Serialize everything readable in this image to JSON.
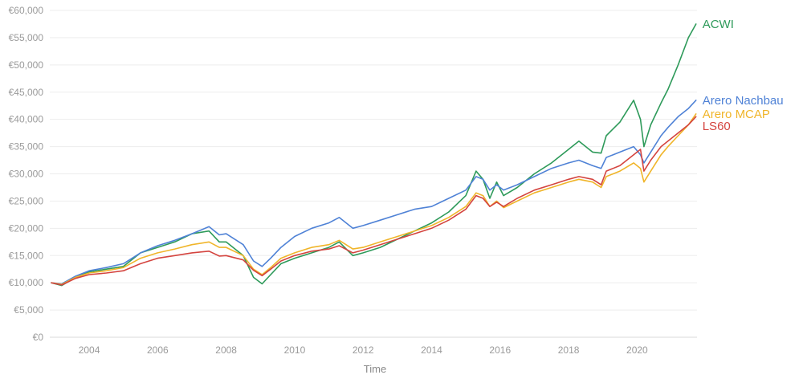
{
  "chart_data": {
    "type": "line",
    "xlabel": "Time",
    "ylabel": "",
    "xlim": [
      2002.85,
      2021.75
    ],
    "ylim": [
      0,
      60000
    ],
    "x_ticks": [
      2004,
      2006,
      2008,
      2010,
      2012,
      2014,
      2016,
      2018,
      2020
    ],
    "x_tick_labels": [
      "2004",
      "2006",
      "2008",
      "2010",
      "2012",
      "2014",
      "2016",
      "2018",
      "2020"
    ],
    "y_ticks": [
      0,
      5000,
      10000,
      15000,
      20000,
      25000,
      30000,
      35000,
      40000,
      45000,
      50000,
      55000,
      60000
    ],
    "y_tick_labels": [
      "€0",
      "€5,000",
      "€10,000",
      "€15,000",
      "€20,000",
      "€25,000",
      "€30,000",
      "€35,000",
      "€40,000",
      "€45,000",
      "€50,000",
      "€55,000",
      "€60,000"
    ],
    "grid": "horizontal",
    "legend": "labels at line ends",
    "series": [
      {
        "name": "ACWI",
        "color": "#2e9a5a",
        "points": [
          [
            2002.9,
            10000
          ],
          [
            2003.2,
            9500
          ],
          [
            2003.6,
            11000
          ],
          [
            2004.0,
            12000
          ],
          [
            2004.5,
            12500
          ],
          [
            2005.0,
            13000
          ],
          [
            2005.5,
            15500
          ],
          [
            2006.0,
            16500
          ],
          [
            2006.5,
            17500
          ],
          [
            2007.0,
            19000
          ],
          [
            2007.5,
            19500
          ],
          [
            2007.8,
            17500
          ],
          [
            2008.0,
            17500
          ],
          [
            2008.5,
            15000
          ],
          [
            2008.8,
            11000
          ],
          [
            2009.05,
            9800
          ],
          [
            2009.3,
            11500
          ],
          [
            2009.6,
            13500
          ],
          [
            2010.0,
            14500
          ],
          [
            2010.5,
            15500
          ],
          [
            2011.0,
            16500
          ],
          [
            2011.3,
            17500
          ],
          [
            2011.7,
            15000
          ],
          [
            2012.0,
            15500
          ],
          [
            2012.5,
            16500
          ],
          [
            2013.0,
            18000
          ],
          [
            2013.5,
            19500
          ],
          [
            2014.0,
            21000
          ],
          [
            2014.5,
            23000
          ],
          [
            2015.0,
            26000
          ],
          [
            2015.3,
            30500
          ],
          [
            2015.5,
            29000
          ],
          [
            2015.7,
            25500
          ],
          [
            2015.9,
            28500
          ],
          [
            2016.1,
            26000
          ],
          [
            2016.5,
            27500
          ],
          [
            2017.0,
            30000
          ],
          [
            2017.5,
            32000
          ],
          [
            2018.0,
            34500
          ],
          [
            2018.3,
            36000
          ],
          [
            2018.7,
            34000
          ],
          [
            2018.95,
            33800
          ],
          [
            2019.1,
            37000
          ],
          [
            2019.5,
            39500
          ],
          [
            2019.9,
            43500
          ],
          [
            2020.1,
            40000
          ],
          [
            2020.2,
            35000
          ],
          [
            2020.4,
            39000
          ],
          [
            2020.7,
            43000
          ],
          [
            2020.9,
            45500
          ],
          [
            2021.2,
            50000
          ],
          [
            2021.5,
            55000
          ],
          [
            2021.72,
            57500
          ]
        ]
      },
      {
        "name": "Arero Nachbau",
        "color": "#4f82d6",
        "points": [
          [
            2002.9,
            10000
          ],
          [
            2003.2,
            9800
          ],
          [
            2003.6,
            11200
          ],
          [
            2004.0,
            12200
          ],
          [
            2004.5,
            12800
          ],
          [
            2005.0,
            13500
          ],
          [
            2005.5,
            15500
          ],
          [
            2006.0,
            16800
          ],
          [
            2006.5,
            17800
          ],
          [
            2007.0,
            19000
          ],
          [
            2007.5,
            20300
          ],
          [
            2007.8,
            18800
          ],
          [
            2008.0,
            19000
          ],
          [
            2008.5,
            17000
          ],
          [
            2008.8,
            14000
          ],
          [
            2009.05,
            13000
          ],
          [
            2009.3,
            14500
          ],
          [
            2009.6,
            16500
          ],
          [
            2010.0,
            18500
          ],
          [
            2010.5,
            20000
          ],
          [
            2011.0,
            21000
          ],
          [
            2011.3,
            22000
          ],
          [
            2011.7,
            20000
          ],
          [
            2012.0,
            20500
          ],
          [
            2012.5,
            21500
          ],
          [
            2013.0,
            22500
          ],
          [
            2013.5,
            23500
          ],
          [
            2014.0,
            24000
          ],
          [
            2014.5,
            25500
          ],
          [
            2015.0,
            27000
          ],
          [
            2015.3,
            29500
          ],
          [
            2015.5,
            29000
          ],
          [
            2015.7,
            27000
          ],
          [
            2015.9,
            28000
          ],
          [
            2016.1,
            27000
          ],
          [
            2016.5,
            28000
          ],
          [
            2017.0,
            29500
          ],
          [
            2017.5,
            31000
          ],
          [
            2018.0,
            32000
          ],
          [
            2018.3,
            32500
          ],
          [
            2018.7,
            31500
          ],
          [
            2018.95,
            31000
          ],
          [
            2019.1,
            33000
          ],
          [
            2019.5,
            34000
          ],
          [
            2019.9,
            35000
          ],
          [
            2020.1,
            33500
          ],
          [
            2020.2,
            32000
          ],
          [
            2020.4,
            34000
          ],
          [
            2020.7,
            37000
          ],
          [
            2020.9,
            38500
          ],
          [
            2021.2,
            40500
          ],
          [
            2021.5,
            42000
          ],
          [
            2021.72,
            43500
          ]
        ]
      },
      {
        "name": "Arero MCAP",
        "color": "#f0b52a",
        "points": [
          [
            2002.9,
            10000
          ],
          [
            2003.2,
            9700
          ],
          [
            2003.6,
            11000
          ],
          [
            2004.0,
            11800
          ],
          [
            2004.5,
            12200
          ],
          [
            2005.0,
            12800
          ],
          [
            2005.5,
            14500
          ],
          [
            2006.0,
            15500
          ],
          [
            2006.5,
            16200
          ],
          [
            2007.0,
            17000
          ],
          [
            2007.5,
            17500
          ],
          [
            2007.8,
            16500
          ],
          [
            2008.0,
            16500
          ],
          [
            2008.5,
            15000
          ],
          [
            2008.8,
            12500
          ],
          [
            2009.05,
            11500
          ],
          [
            2009.3,
            12800
          ],
          [
            2009.6,
            14500
          ],
          [
            2010.0,
            15500
          ],
          [
            2010.5,
            16500
          ],
          [
            2011.0,
            17000
          ],
          [
            2011.3,
            17800
          ],
          [
            2011.7,
            16200
          ],
          [
            2012.0,
            16500
          ],
          [
            2012.5,
            17500
          ],
          [
            2013.0,
            18500
          ],
          [
            2013.5,
            19500
          ],
          [
            2014.0,
            20500
          ],
          [
            2014.5,
            22000
          ],
          [
            2015.0,
            24000
          ],
          [
            2015.3,
            26500
          ],
          [
            2015.5,
            26000
          ],
          [
            2015.7,
            24000
          ],
          [
            2015.9,
            25000
          ],
          [
            2016.1,
            23800
          ],
          [
            2016.5,
            25000
          ],
          [
            2017.0,
            26500
          ],
          [
            2017.5,
            27500
          ],
          [
            2018.0,
            28500
          ],
          [
            2018.3,
            29000
          ],
          [
            2018.7,
            28500
          ],
          [
            2018.95,
            27500
          ],
          [
            2019.1,
            29500
          ],
          [
            2019.5,
            30500
          ],
          [
            2019.9,
            32000
          ],
          [
            2020.1,
            31000
          ],
          [
            2020.2,
            28500
          ],
          [
            2020.4,
            30500
          ],
          [
            2020.7,
            33500
          ],
          [
            2020.9,
            35000
          ],
          [
            2021.2,
            37000
          ],
          [
            2021.5,
            39000
          ],
          [
            2021.72,
            41000
          ]
        ]
      },
      {
        "name": "LS60",
        "color": "#d4443f",
        "points": [
          [
            2002.9,
            10000
          ],
          [
            2003.2,
            9600
          ],
          [
            2003.6,
            10800
          ],
          [
            2004.0,
            11500
          ],
          [
            2004.5,
            11800
          ],
          [
            2005.0,
            12200
          ],
          [
            2005.5,
            13500
          ],
          [
            2006.0,
            14500
          ],
          [
            2006.5,
            15000
          ],
          [
            2007.0,
            15500
          ],
          [
            2007.5,
            15800
          ],
          [
            2007.8,
            14900
          ],
          [
            2008.0,
            15000
          ],
          [
            2008.5,
            14200
          ],
          [
            2008.8,
            12300
          ],
          [
            2009.05,
            11300
          ],
          [
            2009.3,
            12500
          ],
          [
            2009.6,
            14000
          ],
          [
            2010.0,
            15000
          ],
          [
            2010.5,
            15800
          ],
          [
            2011.0,
            16200
          ],
          [
            2011.3,
            16800
          ],
          [
            2011.7,
            15500
          ],
          [
            2012.0,
            16000
          ],
          [
            2012.5,
            17000
          ],
          [
            2013.0,
            18000
          ],
          [
            2013.5,
            19000
          ],
          [
            2014.0,
            20000
          ],
          [
            2014.5,
            21500
          ],
          [
            2015.0,
            23500
          ],
          [
            2015.3,
            26000
          ],
          [
            2015.5,
            25500
          ],
          [
            2015.7,
            24000
          ],
          [
            2015.9,
            24800
          ],
          [
            2016.1,
            24000
          ],
          [
            2016.5,
            25500
          ],
          [
            2017.0,
            27000
          ],
          [
            2017.5,
            28000
          ],
          [
            2018.0,
            29000
          ],
          [
            2018.3,
            29500
          ],
          [
            2018.7,
            29000
          ],
          [
            2018.95,
            28000
          ],
          [
            2019.1,
            30500
          ],
          [
            2019.5,
            31500
          ],
          [
            2019.9,
            33500
          ],
          [
            2020.1,
            34500
          ],
          [
            2020.2,
            30500
          ],
          [
            2020.4,
            32500
          ],
          [
            2020.7,
            35000
          ],
          [
            2020.9,
            36000
          ],
          [
            2021.2,
            37500
          ],
          [
            2021.5,
            39000
          ],
          [
            2021.72,
            40500
          ]
        ]
      }
    ]
  }
}
